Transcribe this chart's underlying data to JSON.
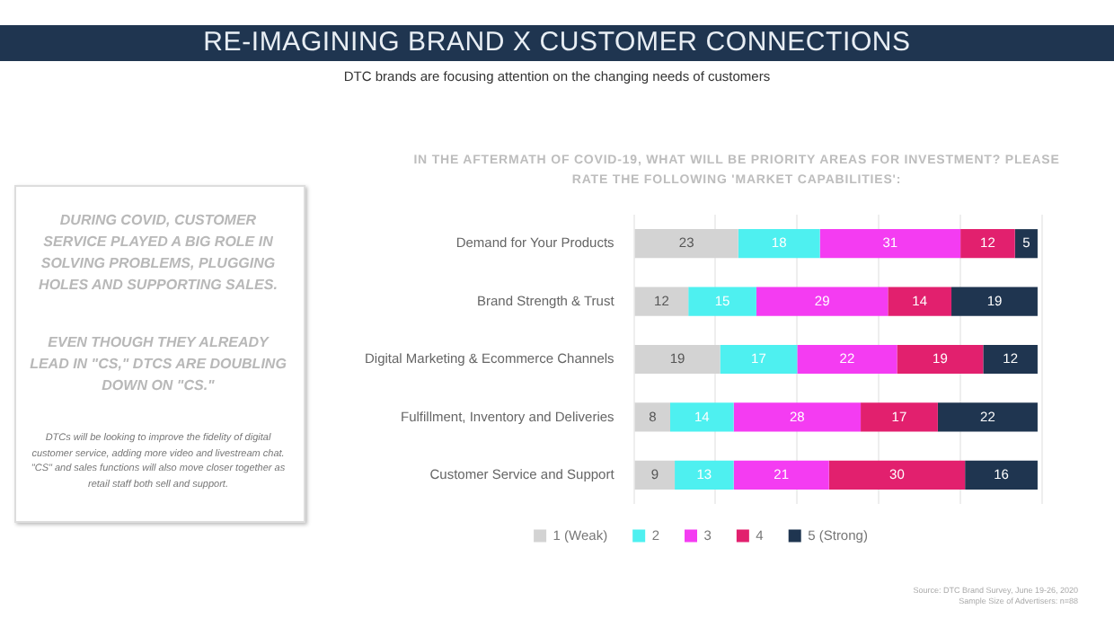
{
  "chart_data": {
    "type": "bar",
    "orientation": "horizontal",
    "stacked": true,
    "title": "RE-IMAGINING BRAND X CUSTOMER CONNECTIONS",
    "subtitle": "DTC brands are focusing attention on the changing needs of customers",
    "categories": [
      "Demand for Your Products",
      "Brand Strength & Trust",
      "Digital Marketing & Ecommerce Channels",
      "Fulfillment, Inventory and Deliveries",
      "Customer Service and Support"
    ],
    "series": [
      {
        "name": "1 (Weak)",
        "color": "#d3d3d3",
        "values": [
          23,
          12,
          19,
          8,
          9
        ]
      },
      {
        "name": "2",
        "color": "#4ef0f0",
        "values": [
          18,
          15,
          17,
          14,
          13
        ]
      },
      {
        "name": "3",
        "color": "#f43cf2",
        "values": [
          31,
          29,
          22,
          28,
          21
        ]
      },
      {
        "name": "4",
        "color": "#e2206e",
        "values": [
          12,
          14,
          19,
          17,
          30
        ]
      },
      {
        "name": "5 (Strong)",
        "color": "#1f3550",
        "values": [
          5,
          19,
          12,
          22,
          16
        ]
      }
    ],
    "xlim": [
      0,
      90
    ],
    "xticks": [
      {
        "value": 0,
        "label": null
      },
      {
        "value": 18,
        "label": null
      },
      {
        "value": 36,
        "label": null
      },
      {
        "value": 54,
        "label": null
      },
      {
        "value": 72,
        "label": null
      },
      {
        "value": 90,
        "label": null
      }
    ],
    "tick_labels": "y",
    "grid": "x",
    "legend": "bottom",
    "data_labels": true,
    "annotations": [
      "IN THE AFTERMATH OF COVID-19, WHAT WILL BE PRIORITY AREAS FOR INVESTMENT? PLEASE RATE THE FOLLOWING 'MARKET CAPABILITIES':",
      "DURING COVID, CUSTOMER SERVICE PLAYED A BIG ROLE IN SOLVING PROBLEMS, PLUGGING HOLES AND SUPPORTING SALES.",
      "EVEN THOUGH THEY ALREADY LEAD IN \"CS,\" DTCS ARE DOUBLING DOWN ON \"CS.\"",
      "DTCs will be looking to improve the fidelity of digital customer service, adding more video and livestream chat. \"CS\" and sales functions will also move closer together as retail staff both sell and support.",
      "Source: DTC Brand Survey, June 19-26, 2020",
      "Sample Size of Advertisers: n=88"
    ]
  }
}
